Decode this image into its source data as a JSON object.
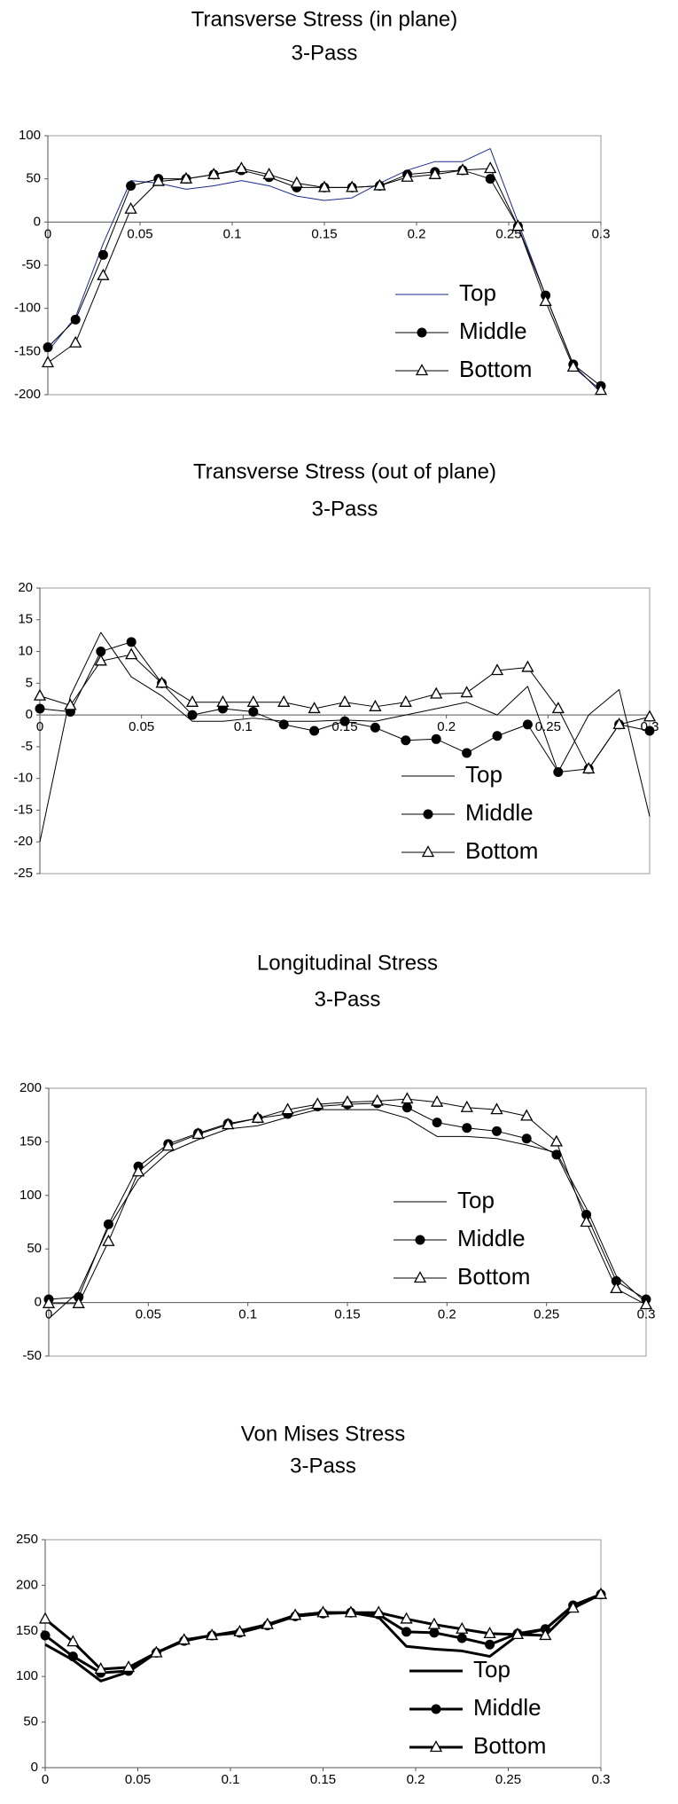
{
  "chart_data": [
    {
      "type": "line",
      "title": "Transverse Stress (in plane)",
      "subtitle": "3-Pass",
      "x": [
        0,
        0.015,
        0.03,
        0.045,
        0.06,
        0.075,
        0.09,
        0.105,
        0.12,
        0.135,
        0.15,
        0.165,
        0.18,
        0.195,
        0.21,
        0.225,
        0.24,
        0.255,
        0.27,
        0.285,
        0.3
      ],
      "series": [
        {
          "name": "Top",
          "color": "#1a2a8c",
          "marker": "none",
          "values": [
            -150,
            -110,
            -25,
            48,
            45,
            38,
            42,
            48,
            42,
            30,
            25,
            28,
            45,
            60,
            70,
            70,
            85,
            0,
            -85,
            -165,
            -198
          ]
        },
        {
          "name": "Middle",
          "color": "#000000",
          "marker": "circle",
          "values": [
            -145,
            -113,
            -38,
            42,
            50,
            50,
            55,
            60,
            52,
            40,
            40,
            40,
            42,
            55,
            58,
            60,
            50,
            -5,
            -85,
            -165,
            -190
          ]
        },
        {
          "name": "Bottom",
          "color": "#000000",
          "marker": "triangle",
          "values": [
            -163,
            -140,
            -62,
            15,
            47,
            50,
            55,
            62,
            55,
            45,
            40,
            40,
            42,
            52,
            55,
            60,
            62,
            -5,
            -92,
            -168,
            -195
          ]
        }
      ],
      "xlim": [
        0,
        0.3
      ],
      "xticks": [
        0,
        0.05,
        0.1,
        0.15,
        0.2,
        0.25,
        0.3
      ],
      "ylim": [
        -200,
        100
      ],
      "yticks": [
        -200,
        -150,
        -100,
        -50,
        0,
        50,
        100
      ],
      "legend": "lower right",
      "line_width": 1
    },
    {
      "type": "line",
      "title": "Transverse Stress (out of plane)",
      "subtitle": "3-Pass",
      "x": [
        0,
        0.015,
        0.03,
        0.045,
        0.06,
        0.075,
        0.09,
        0.105,
        0.12,
        0.135,
        0.15,
        0.165,
        0.18,
        0.195,
        0.21,
        0.225,
        0.24,
        0.255,
        0.27,
        0.285,
        0.3
      ],
      "series": [
        {
          "name": "Top",
          "color": "#000000",
          "marker": "none",
          "values": [
            -20,
            3,
            13,
            6,
            3,
            -1,
            -1,
            -0.5,
            -1,
            -1,
            -0.8,
            -1,
            0,
            1,
            2,
            0,
            4.5,
            -9,
            0,
            4,
            -16
          ]
        },
        {
          "name": "Middle",
          "color": "#000000",
          "marker": "circle",
          "values": [
            1,
            0.5,
            10,
            11.5,
            5,
            0,
            1,
            0.5,
            -1.5,
            -2.5,
            -1,
            -2,
            -4,
            -3.8,
            -6,
            -3.3,
            -1.5,
            -9,
            -8.5,
            -1.5,
            -2.5
          ]
        },
        {
          "name": "Bottom",
          "color": "#000000",
          "marker": "triangle",
          "values": [
            3,
            1.5,
            8.5,
            9.5,
            5,
            2,
            2,
            2,
            2,
            1,
            2,
            1.3,
            2,
            3.3,
            3.5,
            7,
            7.5,
            1,
            -8.5,
            -1.5,
            -0.3
          ]
        }
      ],
      "xlim": [
        0,
        0.3
      ],
      "xticks": [
        0,
        0.05,
        0.1,
        0.15,
        0.2,
        0.25,
        0.3
      ],
      "ylim": [
        -25,
        20
      ],
      "yticks": [
        -25,
        -20,
        -15,
        -10,
        -5,
        0,
        5,
        10,
        15,
        20
      ],
      "legend": "lower right",
      "line_width": 1
    },
    {
      "type": "line",
      "title": "Longitudinal Stress",
      "subtitle": "3-Pass",
      "x": [
        0,
        0.015,
        0.03,
        0.045,
        0.06,
        0.075,
        0.09,
        0.105,
        0.12,
        0.135,
        0.15,
        0.165,
        0.18,
        0.195,
        0.21,
        0.225,
        0.24,
        0.255,
        0.27,
        0.285,
        0.3
      ],
      "series": [
        {
          "name": "Top",
          "color": "#000000",
          "marker": "none",
          "values": [
            -15,
            10,
            70,
            115,
            140,
            152,
            162,
            165,
            173,
            180,
            180,
            180,
            172,
            155,
            155,
            153,
            147,
            140,
            88,
            25,
            0
          ]
        },
        {
          "name": "Middle",
          "color": "#000000",
          "marker": "circle",
          "values": [
            3,
            5,
            73,
            127,
            148,
            158,
            167,
            172,
            176,
            183,
            185,
            186,
            182,
            168,
            163,
            160,
            153,
            138,
            82,
            20,
            3
          ]
        },
        {
          "name": "Bottom",
          "color": "#000000",
          "marker": "triangle",
          "values": [
            -1,
            -1,
            57,
            122,
            146,
            157,
            166,
            172,
            180,
            185,
            187,
            188,
            190,
            187,
            182,
            180,
            174,
            150,
            75,
            13,
            -2
          ]
        }
      ],
      "xlim": [
        0,
        0.3
      ],
      "xticks": [
        0,
        0.05,
        0.1,
        0.15,
        0.2,
        0.25,
        0.3
      ],
      "ylim": [
        -50,
        200
      ],
      "yticks": [
        -50,
        0,
        50,
        100,
        150,
        200
      ],
      "legend": "lower right",
      "line_width": 1
    },
    {
      "type": "line",
      "title": "Von Mises Stress",
      "subtitle": "3-Pass",
      "x": [
        0,
        0.015,
        0.03,
        0.045,
        0.06,
        0.075,
        0.09,
        0.105,
        0.12,
        0.135,
        0.15,
        0.165,
        0.18,
        0.195,
        0.21,
        0.225,
        0.24,
        0.255,
        0.27,
        0.285,
        0.3
      ],
      "series": [
        {
          "name": "Top",
          "color": "#000000",
          "marker": "none",
          "values": [
            135,
            118,
            95,
            105,
            126,
            140,
            145,
            150,
            157,
            167,
            170,
            170,
            165,
            133,
            130,
            128,
            122,
            145,
            152,
            178,
            190
          ]
        },
        {
          "name": "Middle",
          "color": "#000000",
          "marker": "circle",
          "values": [
            145,
            122,
            104,
            106,
            126,
            139,
            145,
            148,
            156,
            166,
            169,
            170,
            168,
            149,
            148,
            142,
            135,
            147,
            152,
            178,
            190
          ]
        },
        {
          "name": "Bottom",
          "color": "#000000",
          "marker": "triangle",
          "values": [
            163,
            138,
            108,
            110,
            126,
            140,
            145,
            149,
            157,
            167,
            170,
            170,
            170,
            163,
            157,
            152,
            147,
            146,
            145,
            175,
            190
          ]
        }
      ],
      "xlim": [
        0,
        0.3
      ],
      "xticks": [
        0,
        0.05,
        0.1,
        0.15,
        0.2,
        0.25,
        0.3
      ],
      "ylim": [
        0,
        250
      ],
      "yticks": [
        0,
        50,
        100,
        150,
        200,
        250
      ],
      "legend": "lower right",
      "line_width": 3
    }
  ]
}
